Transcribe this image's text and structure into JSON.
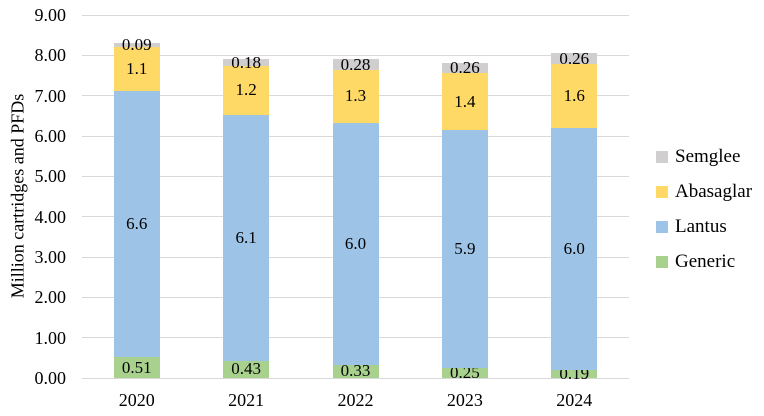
{
  "figure": {
    "background": "#FFFFFF",
    "text_color": "#000000",
    "gridline_color": "#D9D9D9"
  },
  "chart_data": {
    "type": "bar",
    "stacked": true,
    "title": "",
    "xlabel": "",
    "ylabel": "Million cartridges and PFDs",
    "categories": [
      "2020",
      "2021",
      "2022",
      "2023",
      "2024"
    ],
    "series": [
      {
        "name": "Generic",
        "color": "#A9D18E",
        "values": [
          0.51,
          0.43,
          0.33,
          0.25,
          0.19
        ],
        "labels": [
          "0.51",
          "0.43",
          "0.33",
          "0.25",
          "0.19"
        ]
      },
      {
        "name": "Lantus",
        "color": "#9DC3E6",
        "values": [
          6.6,
          6.1,
          6.0,
          5.9,
          6.0
        ],
        "labels": [
          "6.6",
          "6.1",
          "6.0",
          "5.9",
          "6.0"
        ]
      },
      {
        "name": "Abasaglar",
        "color": "#FFD966",
        "values": [
          1.1,
          1.2,
          1.3,
          1.4,
          1.6
        ],
        "labels": [
          "1.1",
          "1.2",
          "1.3",
          "1.4",
          "1.6"
        ]
      },
      {
        "name": "Semglee",
        "color": "#D0CECE",
        "values": [
          0.09,
          0.18,
          0.28,
          0.26,
          0.26
        ],
        "labels": [
          "0.09",
          "0.18",
          "0.28",
          "0.26",
          "0.26"
        ]
      }
    ],
    "ylim": [
      0,
      9
    ],
    "yticks": [
      "0.00",
      "1.00",
      "2.00",
      "3.00",
      "4.00",
      "5.00",
      "6.00",
      "7.00",
      "8.00",
      "9.00"
    ],
    "grid": true,
    "legend": {
      "position": "right",
      "entries": [
        "Semglee",
        "Abasaglar",
        "Lantus",
        "Generic"
      ]
    }
  }
}
